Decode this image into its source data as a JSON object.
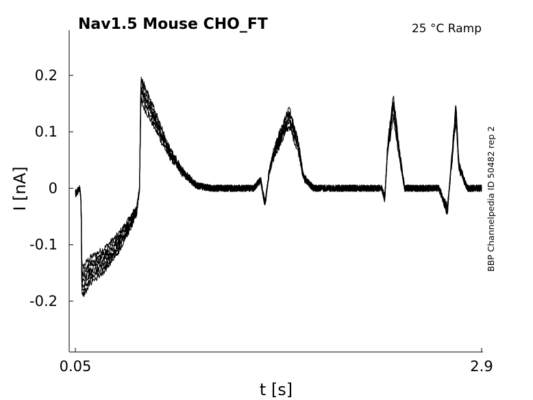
{
  "chart_data": {
    "type": "line",
    "title": "Nav1.5  Mouse  CHO_FT",
    "condition": "25 °C  Ramp",
    "source": "BBP Channelpedia ID 50482 rep 2",
    "xlabel": "t [s]",
    "ylabel": "I [nA]",
    "xlim": [
      0.05,
      2.9
    ],
    "ylim": [
      -0.29,
      0.28
    ],
    "x_ticks": [
      0.05,
      2.9
    ],
    "x_tick_labels": [
      "0.05",
      "2.9"
    ],
    "y_ticks": [
      -0.2,
      -0.1,
      0,
      0.1,
      0.2
    ],
    "y_tick_labels": [
      "-0.2",
      "-0.1",
      "0",
      "0.1",
      "0.2"
    ],
    "grid": false,
    "legend": "none",
    "n_traces": 7,
    "trace_color": "#000000",
    "representative_trace": {
      "x": [
        0.05,
        0.08,
        0.09,
        0.095,
        0.1,
        0.15,
        0.25,
        0.35,
        0.42,
        0.48,
        0.5,
        0.51,
        0.6,
        0.7,
        0.8,
        0.9,
        1.0,
        1.1,
        1.2,
        1.3,
        1.35,
        1.38,
        1.41,
        1.45,
        1.55,
        1.62,
        1.65,
        1.72,
        1.8,
        1.95,
        2.1,
        2.2,
        2.22,
        2.24,
        2.28,
        2.33,
        2.36,
        2.4,
        2.5,
        2.6,
        2.66,
        2.69,
        2.72,
        2.74,
        2.8,
        2.9
      ],
      "y": [
        -0.01,
        0.0,
        -0.02,
        -0.16,
        -0.17,
        -0.15,
        -0.13,
        -0.1,
        -0.07,
        -0.04,
        0.0,
        0.18,
        0.13,
        0.07,
        0.03,
        0.005,
        0.0,
        0.0,
        0.0,
        0.0,
        0.015,
        -0.03,
        0.03,
        0.07,
        0.13,
        0.07,
        0.02,
        0.0,
        0.0,
        0.0,
        0.0,
        0.0,
        -0.02,
        0.07,
        0.15,
        0.05,
        0.0,
        0.0,
        0.0,
        0.0,
        -0.04,
        0.05,
        0.14,
        0.04,
        0.0,
        0.0
      ]
    }
  }
}
